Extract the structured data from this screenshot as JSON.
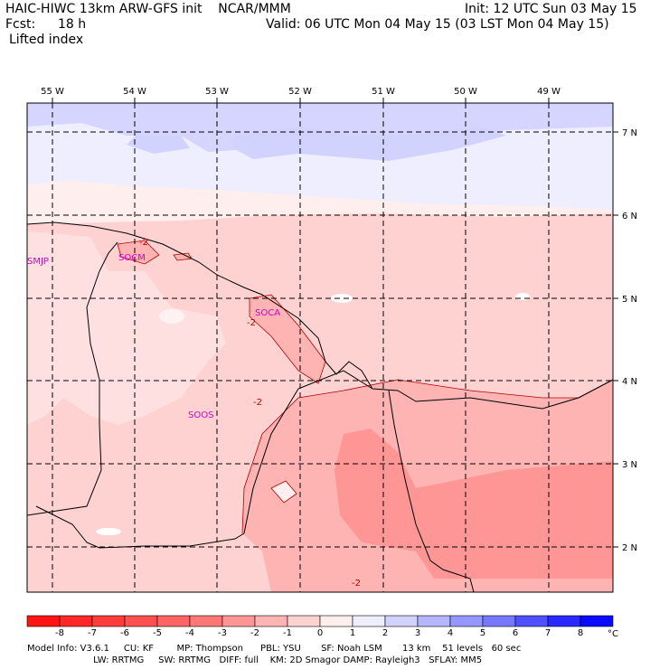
{
  "header": {
    "model_line": "HAIC-HIWC 13km ARW-GFS init    NCAR/MMM",
    "init_line": "Init: 12 UTC Sun 03 May 15",
    "fcst_label": "Fcst:",
    "fcst_value": "18 h",
    "valid_line": "Valid: 06 UTC Mon 04 May 15 (03 LST Mon 04 May 15)",
    "field_name": "Lifted index"
  },
  "map": {
    "lon_labels": [
      "55 W",
      "54 W",
      "53 W",
      "52 W",
      "51 W",
      "50 W",
      "49 W"
    ],
    "lat_labels": [
      "7 N",
      "6 N",
      "5 N",
      "4 N",
      "3 N",
      "2 N"
    ],
    "stations": [
      "SMJP",
      "SOCM",
      "SOCA",
      "SOOS"
    ],
    "contour_label": "-2"
  },
  "colorbar": {
    "ticks": [
      "-8",
      "-7",
      "-6",
      "-5",
      "-4",
      "-3",
      "-2",
      "-1",
      "0",
      "1",
      "2",
      "3",
      "4",
      "5",
      "6",
      "7",
      "8"
    ],
    "unit": "°C",
    "colors": [
      "#ff1414",
      "#ff2828",
      "#ff3c3c",
      "#ff5050",
      "#ff6464",
      "#ff7878",
      "#ff9696",
      "#ffb4b4",
      "#ffd2d2",
      "#ffeeee",
      "#eeeeff",
      "#d2d2ff",
      "#b4b4ff",
      "#9696ff",
      "#7878ff",
      "#5050ff",
      "#2828ff",
      "#0a0aff"
    ]
  },
  "footer": {
    "line1": "Model Info: V3.6.1     CU: KF        MP: Thompson      PBL: YSU       SF: Noah LSM       13 km    51 levels   60 sec",
    "line2": "                       LW: RRTMG     SW: RRTMG   DIFF: full    KM: 2D Smagor DAMP: Rayleigh3   SFLAY: MM5"
  }
}
